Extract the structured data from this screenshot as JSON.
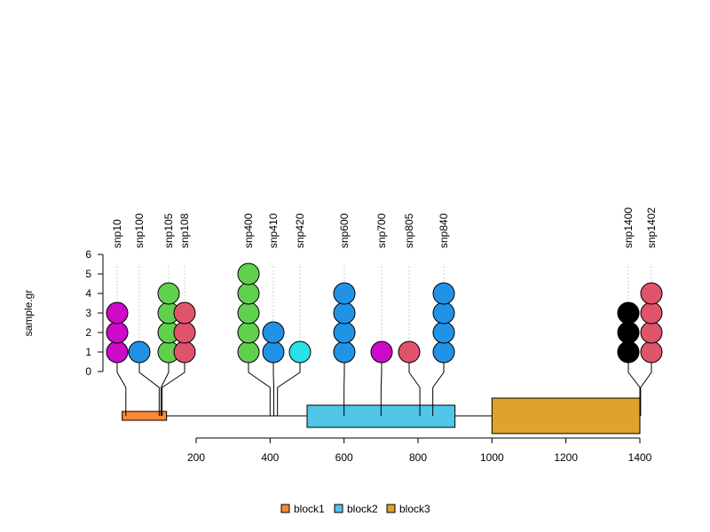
{
  "chart_data": {
    "type": "lollipop",
    "track_label": "sample.gr",
    "ylim": [
      0,
      6
    ],
    "y_ticks": [
      "0",
      "1",
      "2",
      "3",
      "4",
      "5",
      "6"
    ],
    "xlim": [
      200,
      1400
    ],
    "x_ticks": [
      "200",
      "400",
      "600",
      "800",
      "1000",
      "1200",
      "1400"
    ],
    "features": [
      {
        "name": "block1",
        "start": 0,
        "end": 120,
        "color": "#FF8833",
        "height": "short"
      },
      {
        "name": "block2",
        "start": 500,
        "end": 900,
        "color": "#51C6E6",
        "height": "medium"
      },
      {
        "name": "block3",
        "start": 1000,
        "end": 1400,
        "color": "#DFA32D",
        "height": "tall"
      }
    ],
    "snps": [
      {
        "name": "snp10",
        "position": 10,
        "score": 3,
        "color": "#CC0AC8"
      },
      {
        "name": "snp100",
        "position": 100,
        "score": 1,
        "color": "#2193E6"
      },
      {
        "name": "snp105",
        "position": 105,
        "score": 4,
        "color": "#61D04F"
      },
      {
        "name": "snp108",
        "position": 108,
        "score": 3,
        "color": "#DF536B"
      },
      {
        "name": "snp400",
        "position": 400,
        "score": 5,
        "color": "#61D04F"
      },
      {
        "name": "snp410",
        "position": 410,
        "score": 2,
        "color": "#2193E6"
      },
      {
        "name": "snp420",
        "position": 420,
        "score": 1,
        "color": "#28E2E5"
      },
      {
        "name": "snp600",
        "position": 600,
        "score": 4,
        "color": "#2193E6"
      },
      {
        "name": "snp700",
        "position": 700,
        "score": 1,
        "color": "#CC0AC8"
      },
      {
        "name": "snp805",
        "position": 805,
        "score": 1,
        "color": "#DF536B"
      },
      {
        "name": "snp840",
        "position": 840,
        "score": 4,
        "color": "#2193E6"
      },
      {
        "name": "snp1400",
        "position": 1400,
        "score": 3,
        "color": "#000000"
      },
      {
        "name": "snp1402",
        "position": 1402,
        "score": 4,
        "color": "#DF536B"
      }
    ],
    "legend": {
      "position": "bottom-center",
      "entries": [
        {
          "label": "block1",
          "color": "#FF8833"
        },
        {
          "label": "block2",
          "color": "#51C6E6"
        },
        {
          "label": "block3",
          "color": "#DFA32D"
        }
      ]
    }
  }
}
